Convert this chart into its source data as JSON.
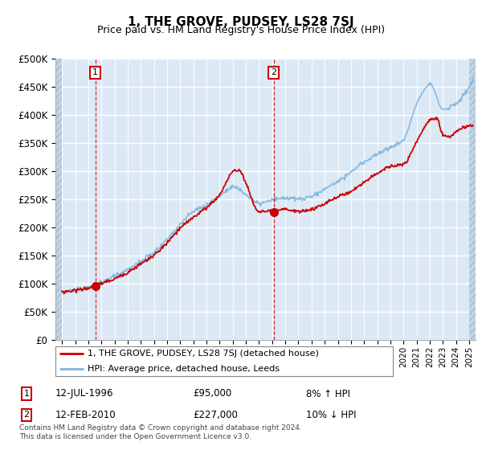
{
  "title": "1, THE GROVE, PUDSEY, LS28 7SJ",
  "subtitle": "Price paid vs. HM Land Registry's House Price Index (HPI)",
  "ylim": [
    0,
    500000
  ],
  "xlim_start": 1993.5,
  "xlim_end": 2025.5,
  "sale1_date": 1996.54,
  "sale1_price": 95000,
  "sale1_label": "1",
  "sale2_date": 2010.12,
  "sale2_price": 227000,
  "sale2_label": "2",
  "hpi_color": "#7eb5e0",
  "price_color": "#cc0000",
  "sale_dot_color": "#cc0000",
  "fig_bg_color": "#ffffff",
  "plot_bg_color": "#dce9f5",
  "hatch_color": "#c0d4e8",
  "grid_color": "#ffffff",
  "legend_entry1": "1, THE GROVE, PUDSEY, LS28 7SJ (detached house)",
  "legend_entry2": "HPI: Average price, detached house, Leeds",
  "annotation1_date": "12-JUL-1996",
  "annotation1_price": "£95,000",
  "annotation1_hpi": "8% ↑ HPI",
  "annotation2_date": "12-FEB-2010",
  "annotation2_price": "£227,000",
  "annotation2_hpi": "10% ↓ HPI",
  "footer": "Contains HM Land Registry data © Crown copyright and database right 2024.\nThis data is licensed under the Open Government Licence v3.0."
}
